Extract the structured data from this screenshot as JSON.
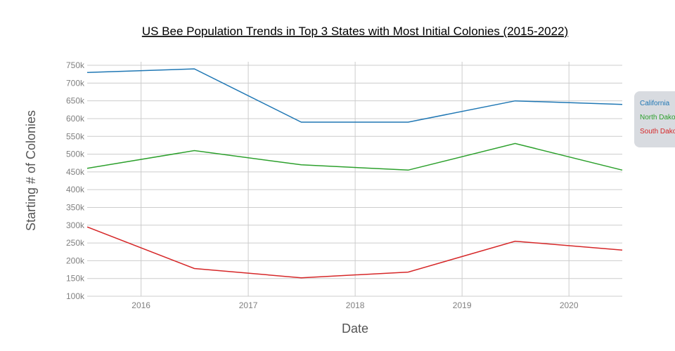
{
  "chart_data": {
    "type": "line",
    "title": "US Bee Population Trends in Top 3 States with Most Initial Colonies (2015-2022)",
    "xlabel": "Date",
    "ylabel": "Starting # of Colonies",
    "xlim": [
      "2015-07-01",
      "2020-07-01"
    ],
    "ylim": [
      100000,
      760000
    ],
    "x_ticks": [
      "2016",
      "2017",
      "2018",
      "2019",
      "2020"
    ],
    "x_tick_dates": [
      "2016-01-01",
      "2017-01-01",
      "2018-01-01",
      "2019-01-01",
      "2020-01-01"
    ],
    "y_ticks": [
      100000,
      150000,
      200000,
      250000,
      300000,
      350000,
      400000,
      450000,
      500000,
      550000,
      600000,
      650000,
      700000,
      750000
    ],
    "y_tick_labels": [
      "100k",
      "150k",
      "200k",
      "250k",
      "300k",
      "350k",
      "400k",
      "450k",
      "500k",
      "550k",
      "600k",
      "650k",
      "700k",
      "750k"
    ],
    "grid": true,
    "legend_position": "right",
    "x": [
      "2015-07-01",
      "2016-07-01",
      "2017-07-01",
      "2018-07-01",
      "2019-07-01",
      "2020-07-01"
    ],
    "series": [
      {
        "name": "California",
        "color": "#1f77b4",
        "values": [
          730000,
          740000,
          590000,
          590000,
          650000,
          640000
        ]
      },
      {
        "name": "North Dakota",
        "color": "#2ca02c",
        "values": [
          460000,
          510000,
          470000,
          455000,
          530000,
          455000
        ]
      },
      {
        "name": "South Dakota",
        "color": "#d62728",
        "values": [
          295000,
          178000,
          152000,
          168000,
          255000,
          230000
        ]
      }
    ]
  }
}
